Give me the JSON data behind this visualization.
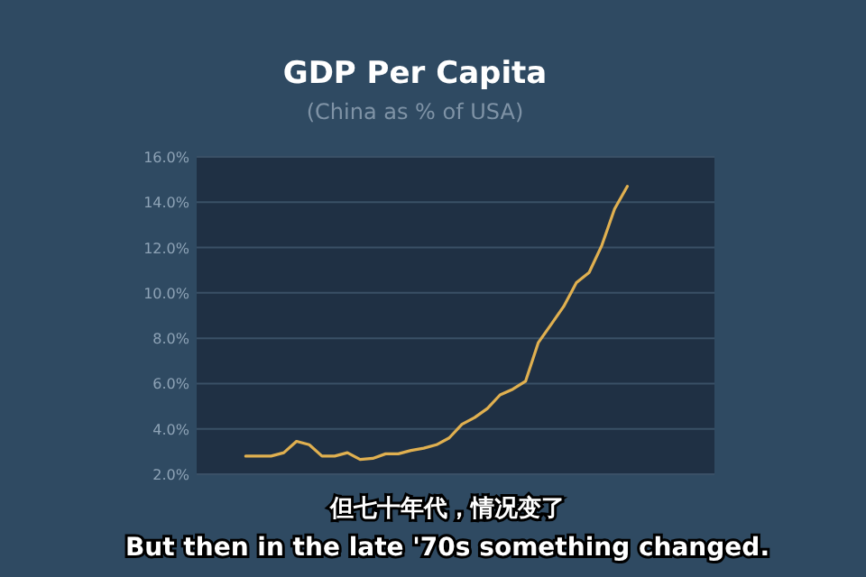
{
  "chart_data": {
    "type": "line",
    "title": "GDP Per Capita",
    "subtitle": "(China as % of USA)",
    "categories": [
      null,
      null,
      null,
      null,
      null,
      null,
      null,
      null,
      null,
      null,
      null,
      null,
      null,
      null,
      null,
      null,
      null,
      null,
      null,
      null,
      null,
      null,
      null,
      null,
      null,
      null,
      null,
      null,
      null,
      null,
      null,
      null,
      null,
      null,
      null,
      null,
      null,
      null,
      null,
      null
    ],
    "series": [
      {
        "color": "#e0b050",
        "values": [
          null,
          null,
          null,
          2.8,
          2.8,
          2.8,
          2.95,
          3.45,
          3.3,
          2.8,
          2.8,
          2.95,
          2.65,
          2.7,
          2.9,
          2.9,
          3.05,
          3.15,
          3.3,
          3.6,
          4.2,
          4.5,
          4.9,
          5.5,
          5.75,
          6.1,
          7.8,
          8.6,
          9.4,
          10.45,
          10.9,
          12.1,
          13.7,
          14.7,
          null,
          null,
          null,
          null,
          null,
          null
        ]
      }
    ],
    "ylim": [
      2,
      16
    ],
    "yticks": [
      {
        "value": 2,
        "label": "2.0%"
      },
      {
        "value": 4,
        "label": "4.0%"
      },
      {
        "value": 6,
        "label": "6.0%"
      },
      {
        "value": 8,
        "label": "8.0%"
      },
      {
        "value": 10,
        "label": "10.0%"
      },
      {
        "value": 12,
        "label": "12.0%"
      },
      {
        "value": 14,
        "label": "14.0%"
      },
      {
        "value": 16,
        "label": "16.0%"
      }
    ],
    "grid": "y",
    "tick_labels": "y",
    "marker": "none",
    "line_style": "solid",
    "annotations": [
      "但七十年代，情况变了",
      "But then in the late '70s something changed."
    ]
  }
}
